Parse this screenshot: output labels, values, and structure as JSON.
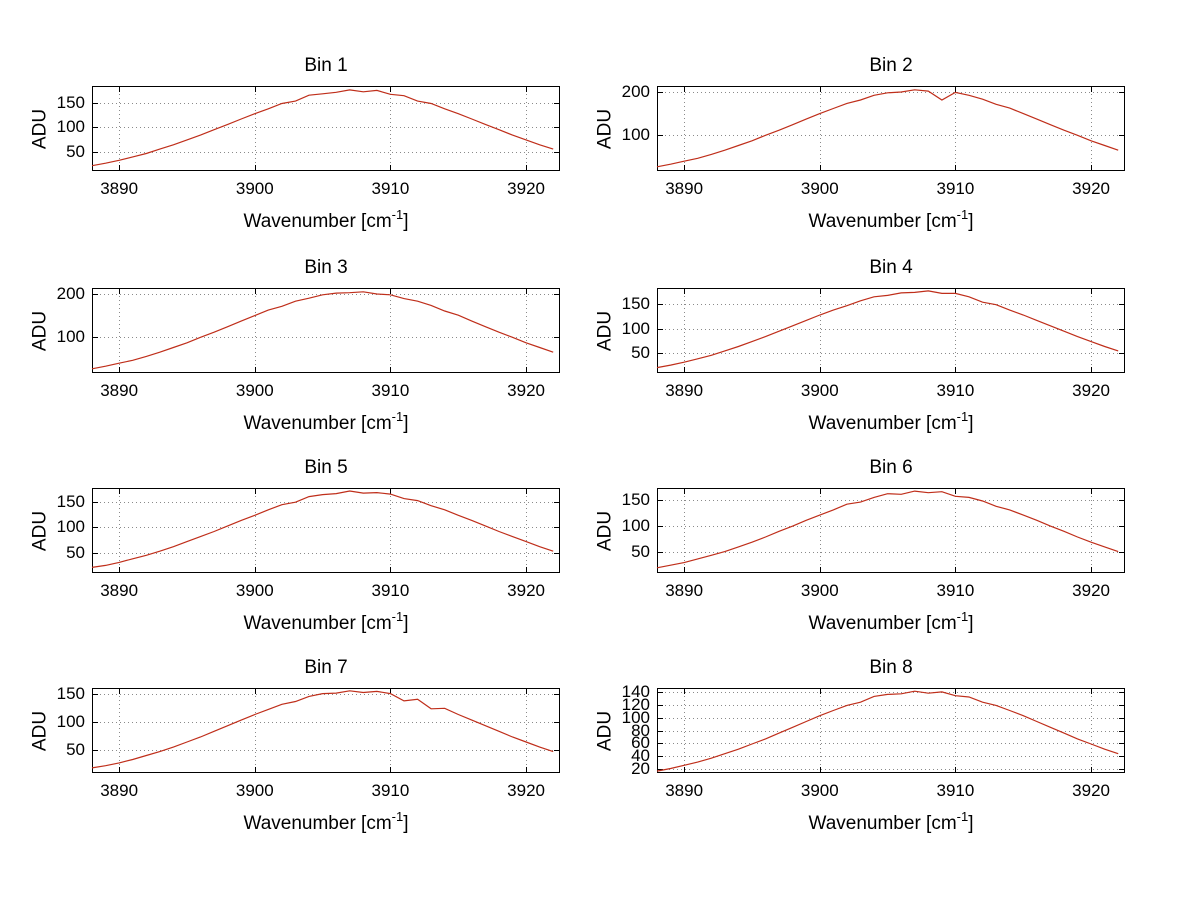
{
  "figure": {
    "background": "#ffffff",
    "line_color": "#bf2e1a",
    "grid_color": "#8a8a8a",
    "axis_color": "#000000",
    "ylabel": "ADU",
    "xlabel_parts": {
      "prefix": "Wavenumber [cm",
      "sup": "-1",
      "suffix": "]"
    }
  },
  "chart_data": [
    {
      "type": "line",
      "title": "Bin 1",
      "xlabel": "Wavenumber [cm^-1]",
      "ylabel": "ADU",
      "xlim": [
        3888,
        3922.5
      ],
      "ylim": [
        10,
        185
      ],
      "xticks": [
        3890,
        3900,
        3910,
        3920
      ],
      "yticks": [
        50,
        100,
        150
      ],
      "grid": true,
      "x_start": 3888,
      "x_step": 1,
      "values": [
        21,
        26,
        32,
        39,
        46,
        55,
        64,
        74,
        84,
        95,
        106,
        117,
        128,
        138,
        149,
        154,
        166,
        169,
        172,
        177,
        173,
        176,
        168,
        165,
        154,
        149,
        138,
        128,
        117,
        106,
        95,
        84,
        74,
        64,
        55
      ]
    },
    {
      "type": "line",
      "title": "Bin 2",
      "xlabel": "Wavenumber [cm^-1]",
      "ylabel": "ADU",
      "xlim": [
        3888,
        3922.5
      ],
      "ylim": [
        15,
        215
      ],
      "xticks": [
        3890,
        3900,
        3910,
        3920
      ],
      "yticks": [
        100,
        200
      ],
      "grid": true,
      "x_start": 3888,
      "x_step": 1,
      "values": [
        25,
        31,
        38,
        45,
        54,
        64,
        75,
        86,
        99,
        111,
        124,
        137,
        150,
        162,
        174,
        182,
        193,
        199,
        201,
        206,
        203,
        182,
        200,
        193,
        184,
        172,
        163,
        150,
        137,
        124,
        111,
        99,
        86,
        75,
        64
      ]
    },
    {
      "type": "line",
      "title": "Bin 3",
      "xlabel": "Wavenumber [cm^-1]",
      "ylabel": "ADU",
      "xlim": [
        3888,
        3922.5
      ],
      "ylim": [
        15,
        215
      ],
      "xticks": [
        3890,
        3900,
        3910,
        3920
      ],
      "yticks": [
        100,
        200
      ],
      "grid": true,
      "x_start": 3888,
      "x_step": 1,
      "values": [
        25,
        31,
        38,
        45,
        54,
        64,
        75,
        86,
        99,
        111,
        124,
        137,
        150,
        163,
        172,
        184,
        191,
        199,
        203,
        204,
        206,
        201,
        199,
        190,
        184,
        174,
        161,
        151,
        137,
        124,
        111,
        99,
        86,
        75,
        64
      ]
    },
    {
      "type": "line",
      "title": "Bin 4",
      "xlabel": "Wavenumber [cm^-1]",
      "ylabel": "ADU",
      "xlim": [
        3888,
        3922.5
      ],
      "ylim": [
        10,
        183
      ],
      "xticks": [
        3890,
        3900,
        3910,
        3920
      ],
      "yticks": [
        50,
        100,
        150
      ],
      "grid": true,
      "x_start": 3888,
      "x_step": 1,
      "values": [
        21,
        26,
        32,
        39,
        46,
        55,
        64,
        74,
        84,
        95,
        106,
        117,
        128,
        138,
        147,
        157,
        165,
        168,
        173,
        174,
        177,
        172,
        172,
        165,
        154,
        149,
        138,
        128,
        117,
        106,
        95,
        84,
        74,
        64,
        55
      ]
    },
    {
      "type": "line",
      "title": "Bin 5",
      "xlabel": "Wavenumber [cm^-1]",
      "ylabel": "ADU",
      "xlim": [
        3888,
        3922.5
      ],
      "ylim": [
        10,
        178
      ],
      "xticks": [
        3890,
        3900,
        3910,
        3920
      ],
      "yticks": [
        50,
        100,
        150
      ],
      "grid": true,
      "x_start": 3888,
      "x_step": 1,
      "values": [
        21,
        25,
        31,
        38,
        45,
        53,
        62,
        72,
        82,
        92,
        103,
        114,
        124,
        135,
        145,
        150,
        161,
        165,
        167,
        172,
        168,
        169,
        166,
        157,
        153,
        143,
        135,
        124,
        114,
        103,
        92,
        82,
        72,
        62,
        53
      ]
    },
    {
      "type": "line",
      "title": "Bin 6",
      "xlabel": "Wavenumber [cm^-1]",
      "ylabel": "ADU",
      "xlim": [
        3888,
        3922.5
      ],
      "ylim": [
        10,
        173
      ],
      "xticks": [
        3890,
        3900,
        3910,
        3920
      ],
      "yticks": [
        50,
        100,
        150
      ],
      "grid": true,
      "x_start": 3888,
      "x_step": 1,
      "values": [
        20,
        25,
        30,
        37,
        44,
        51,
        60,
        69,
        79,
        90,
        100,
        111,
        121,
        131,
        142,
        146,
        155,
        162,
        161,
        167,
        164,
        166,
        157,
        155,
        148,
        138,
        131,
        121,
        111,
        100,
        90,
        79,
        69,
        60,
        51
      ]
    },
    {
      "type": "line",
      "title": "Bin 7",
      "xlabel": "Wavenumber [cm^-1]",
      "ylabel": "ADU",
      "xlim": [
        3888,
        3922.5
      ],
      "ylim": [
        10,
        161
      ],
      "xticks": [
        3890,
        3900,
        3910,
        3920
      ],
      "yticks": [
        50,
        100,
        150
      ],
      "grid": true,
      "x_start": 3888,
      "x_step": 1,
      "values": [
        19,
        23,
        28,
        34,
        41,
        48,
        56,
        65,
        74,
        84,
        94,
        104,
        114,
        123,
        132,
        137,
        146,
        151,
        152,
        156,
        153,
        155,
        151,
        138,
        141,
        124,
        125,
        114,
        104,
        94,
        84,
        74,
        65,
        56,
        48
      ]
    },
    {
      "type": "line",
      "title": "Bin 8",
      "xlabel": "Wavenumber [cm^-1]",
      "ylabel": "ADU",
      "xlim": [
        3888,
        3922.5
      ],
      "ylim": [
        14,
        146
      ],
      "xticks": [
        3890,
        3900,
        3910,
        3920
      ],
      "yticks": [
        20,
        40,
        60,
        80,
        100,
        120,
        140
      ],
      "grid": true,
      "x_start": 3888,
      "x_step": 1,
      "values": [
        17,
        21,
        26,
        31,
        37,
        44,
        51,
        59,
        67,
        76,
        85,
        94,
        103,
        111,
        119,
        124,
        133,
        136,
        137,
        141,
        138,
        140,
        134,
        132,
        124,
        119,
        111,
        103,
        94,
        85,
        76,
        67,
        59,
        51,
        44
      ]
    }
  ]
}
